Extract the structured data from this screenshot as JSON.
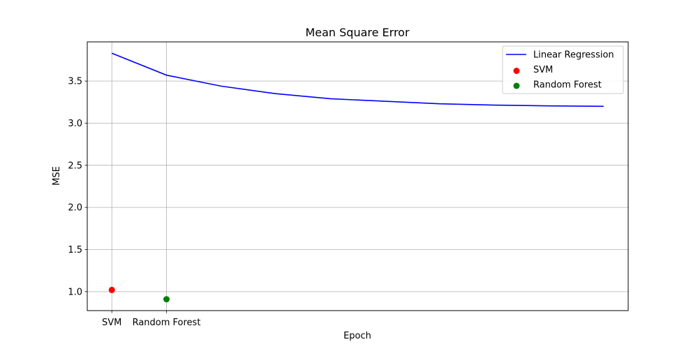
{
  "chart_data": {
    "type": "line",
    "title": "Mean Square Error",
    "xlabel": "Epoch",
    "ylabel": "MSE",
    "x_tick_labels": [
      {
        "x": 0,
        "label": "SVM"
      },
      {
        "x": 1,
        "label": "Random Forest"
      }
    ],
    "xlim": [
      -0.45,
      9.45
    ],
    "ylim": [
      0.775,
      3.965
    ],
    "y_ticks": [
      1.0,
      1.5,
      2.0,
      2.5,
      3.0,
      3.5
    ],
    "y_tick_labels": [
      "1.0",
      "1.5",
      "2.0",
      "2.5",
      "3.0",
      "3.5"
    ],
    "grid": true,
    "legend_position": "top-right",
    "series": [
      {
        "name": "Linear Regression",
        "kind": "line",
        "color": "#0000ff",
        "x": [
          0,
          1,
          2,
          3,
          4,
          5,
          6,
          7,
          8,
          9
        ],
        "y": [
          3.83,
          3.57,
          3.44,
          3.35,
          3.29,
          3.26,
          3.23,
          3.215,
          3.205,
          3.2
        ]
      },
      {
        "name": "SVM",
        "kind": "scatter",
        "color": "#ff0000",
        "x": [
          0
        ],
        "y": [
          1.02
        ]
      },
      {
        "name": "Random Forest",
        "kind": "scatter",
        "color": "#008000",
        "x": [
          1
        ],
        "y": [
          0.91
        ]
      }
    ]
  }
}
